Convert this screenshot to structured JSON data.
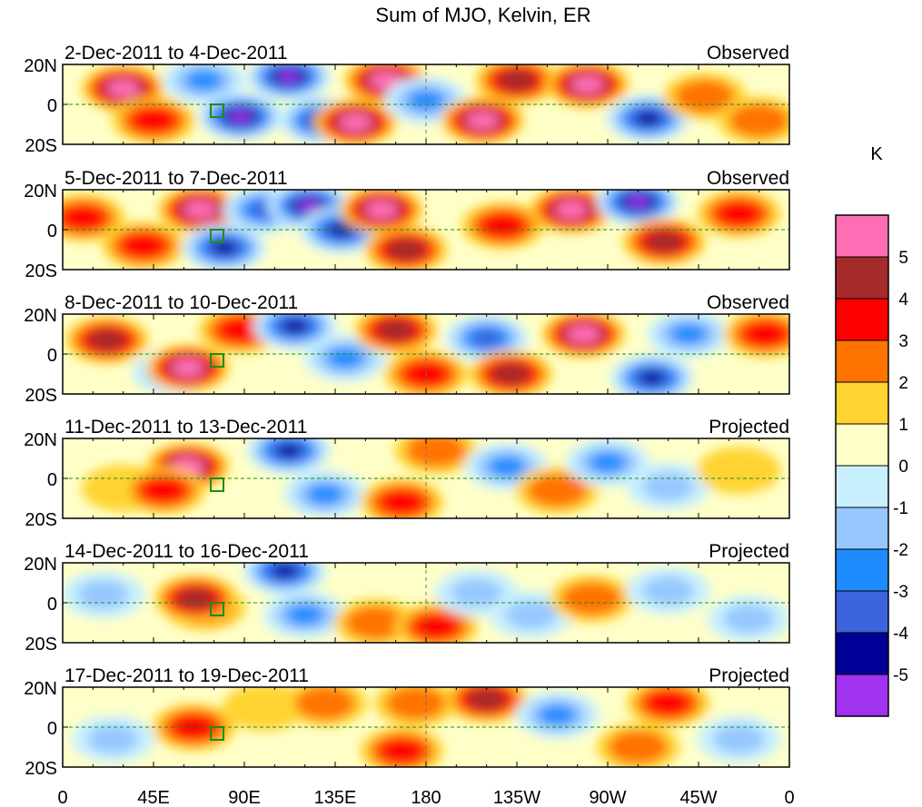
{
  "chart_data": {
    "type": "heatmap",
    "title": "Sum of MJO, Kelvin, ER",
    "colorbar": {
      "unit": "K",
      "tick_labels": [
        "5",
        "4",
        "3",
        "2",
        "1",
        "0",
        "-1",
        "-2",
        "-3",
        "-4",
        "-5"
      ],
      "levels": [
        {
          "label": ">5",
          "color": "#ff6eb4"
        },
        {
          "label": "4 to 5",
          "color": "#a52a2a"
        },
        {
          "label": "3 to 4",
          "color": "#ff0000"
        },
        {
          "label": "2 to 3",
          "color": "#ff7300"
        },
        {
          "label": "1 to 2",
          "color": "#ffd432"
        },
        {
          "label": "0 to 1",
          "color": "#ffffc8"
        },
        {
          "label": "-1 to 0",
          "color": "#c8f0ff"
        },
        {
          "label": "-2 to -1",
          "color": "#96c8ff"
        },
        {
          "label": "-3 to -2",
          "color": "#1e8cff"
        },
        {
          "label": "-4 to -3",
          "color": "#3c64dc"
        },
        {
          "label": "-5 to -4",
          "color": "#000096"
        },
        {
          "label": "<-5",
          "color": "#a032f0"
        }
      ]
    },
    "x_ticks": [
      "0",
      "45E",
      "90E",
      "135E",
      "180",
      "135W",
      "90W",
      "45W",
      "0"
    ],
    "y_ticks": [
      "20N",
      "0",
      "20S"
    ],
    "panels": [
      {
        "period": "2-Dec-2011 to 4-Dec-2011",
        "status": "Observed",
        "blobs": [
          {
            "lon": 30,
            "lat": 8,
            "v": 5.5
          },
          {
            "lon": 45,
            "lat": -8,
            "v": 3.5
          },
          {
            "lon": 70,
            "lat": 12,
            "v": -2.5
          },
          {
            "lon": 88,
            "lat": -6,
            "v": -5.5
          },
          {
            "lon": 112,
            "lat": 14,
            "v": -5.5
          },
          {
            "lon": 128,
            "lat": -8,
            "v": -4.5
          },
          {
            "lon": 145,
            "lat": -9,
            "v": 5.5
          },
          {
            "lon": 160,
            "lat": 12,
            "v": 5.5
          },
          {
            "lon": 180,
            "lat": 2,
            "v": -2.5
          },
          {
            "lon": 208,
            "lat": -8,
            "v": 5.5
          },
          {
            "lon": 225,
            "lat": 12,
            "v": 4.5
          },
          {
            "lon": 260,
            "lat": 10,
            "v": 5.5
          },
          {
            "lon": 290,
            "lat": -7,
            "v": -4.5
          },
          {
            "lon": 318,
            "lat": 4,
            "v": 2.5
          },
          {
            "lon": 345,
            "lat": -8,
            "v": 2.5
          }
        ]
      },
      {
        "period": "5-Dec-2011 to 7-Dec-2011",
        "status": "Observed",
        "blobs": [
          {
            "lon": 10,
            "lat": 6,
            "v": 3.5
          },
          {
            "lon": 40,
            "lat": -8,
            "v": 3.5
          },
          {
            "lon": 68,
            "lat": 10,
            "v": 5.5
          },
          {
            "lon": 80,
            "lat": -9,
            "v": -4.5
          },
          {
            "lon": 100,
            "lat": 10,
            "v": -3.5
          },
          {
            "lon": 122,
            "lat": 12,
            "v": -5.5
          },
          {
            "lon": 138,
            "lat": 0,
            "v": -4.5
          },
          {
            "lon": 158,
            "lat": 10,
            "v": 5.5
          },
          {
            "lon": 170,
            "lat": -10,
            "v": 4.5
          },
          {
            "lon": 218,
            "lat": 2,
            "v": 3.5
          },
          {
            "lon": 252,
            "lat": 10,
            "v": 5.5
          },
          {
            "lon": 285,
            "lat": 14,
            "v": -5.5
          },
          {
            "lon": 298,
            "lat": -6,
            "v": 4.5
          },
          {
            "lon": 335,
            "lat": 8,
            "v": 3.5
          }
        ]
      },
      {
        "period": "8-Dec-2011 to 10-Dec-2011",
        "status": "Observed",
        "blobs": [
          {
            "lon": 22,
            "lat": 7,
            "v": 4.5
          },
          {
            "lon": 55,
            "lat": -9,
            "v": -2.5
          },
          {
            "lon": 62,
            "lat": -7,
            "v": 5.5
          },
          {
            "lon": 88,
            "lat": 12,
            "v": 3.5
          },
          {
            "lon": 115,
            "lat": 14,
            "v": -4.5
          },
          {
            "lon": 140,
            "lat": -2,
            "v": -2.5
          },
          {
            "lon": 165,
            "lat": 12,
            "v": 4.5
          },
          {
            "lon": 180,
            "lat": -10,
            "v": 3.5
          },
          {
            "lon": 210,
            "lat": 8,
            "v": -3.5
          },
          {
            "lon": 222,
            "lat": -10,
            "v": 4.5
          },
          {
            "lon": 258,
            "lat": 10,
            "v": 5.5
          },
          {
            "lon": 292,
            "lat": -12,
            "v": -4.5
          },
          {
            "lon": 310,
            "lat": 10,
            "v": -2.5
          },
          {
            "lon": 348,
            "lat": 10,
            "v": 3.5
          }
        ]
      },
      {
        "period": "11-Dec-2011 to 13-Dec-2011",
        "status": "Projected",
        "blobs": [
          {
            "lon": 30,
            "lat": -5,
            "v": 1.5
          },
          {
            "lon": 62,
            "lat": 6,
            "v": 5.5
          },
          {
            "lon": 50,
            "lat": -6,
            "v": 3.5
          },
          {
            "lon": 112,
            "lat": 14,
            "v": -4.5
          },
          {
            "lon": 130,
            "lat": -8,
            "v": -2.5
          },
          {
            "lon": 168,
            "lat": -12,
            "v": 3.5
          },
          {
            "lon": 185,
            "lat": 14,
            "v": 2.5
          },
          {
            "lon": 220,
            "lat": 6,
            "v": -2.5
          },
          {
            "lon": 245,
            "lat": -6,
            "v": 2.5
          },
          {
            "lon": 270,
            "lat": 8,
            "v": -2.5
          },
          {
            "lon": 300,
            "lat": -4,
            "v": -1.5
          },
          {
            "lon": 335,
            "lat": 4,
            "v": 1.5
          }
        ]
      },
      {
        "period": "14-Dec-2011 to 16-Dec-2011",
        "status": "Projected",
        "blobs": [
          {
            "lon": 70,
            "lat": -2,
            "v": 3.5
          },
          {
            "lon": 66,
            "lat": 2,
            "v": 4.5
          },
          {
            "lon": 20,
            "lat": 4,
            "v": -1.5
          },
          {
            "lon": 110,
            "lat": 16,
            "v": -4.5
          },
          {
            "lon": 120,
            "lat": -6,
            "v": -2.5
          },
          {
            "lon": 155,
            "lat": -10,
            "v": 2.5
          },
          {
            "lon": 185,
            "lat": -12,
            "v": 3.5
          },
          {
            "lon": 205,
            "lat": 5,
            "v": -1.5
          },
          {
            "lon": 232,
            "lat": -6,
            "v": -1.5
          },
          {
            "lon": 262,
            "lat": 2,
            "v": 2.5
          },
          {
            "lon": 300,
            "lat": 6,
            "v": -1.5
          },
          {
            "lon": 340,
            "lat": -8,
            "v": -1.5
          }
        ]
      },
      {
        "period": "17-Dec-2011 to 19-Dec-2011",
        "status": "Projected",
        "blobs": [
          {
            "lon": 65,
            "lat": 0,
            "v": 3.5
          },
          {
            "lon": 25,
            "lat": -6,
            "v": -1.5
          },
          {
            "lon": 100,
            "lat": 10,
            "v": 1.5
          },
          {
            "lon": 130,
            "lat": 12,
            "v": 2.5
          },
          {
            "lon": 168,
            "lat": -12,
            "v": 3.5
          },
          {
            "lon": 175,
            "lat": 12,
            "v": 2.5
          },
          {
            "lon": 210,
            "lat": 14,
            "v": 4.5
          },
          {
            "lon": 245,
            "lat": 6,
            "v": -2.5
          },
          {
            "lon": 285,
            "lat": -10,
            "v": 2.5
          },
          {
            "lon": 300,
            "lat": 12,
            "v": 3.5
          },
          {
            "lon": 335,
            "lat": -6,
            "v": -1.5
          }
        ]
      }
    ]
  }
}
